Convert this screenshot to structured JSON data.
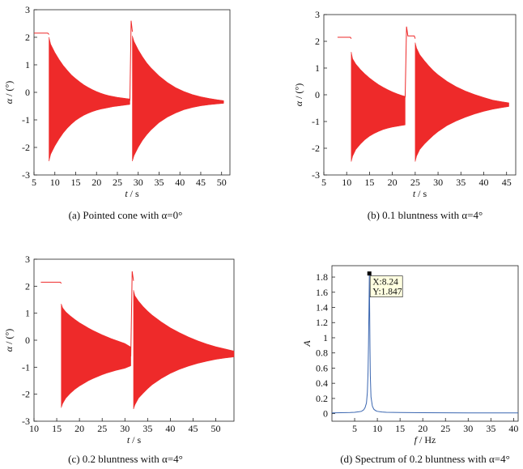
{
  "chart_data": [
    {
      "panel": "a",
      "type": "line",
      "caption": "(a) Pointed cone with α=0°",
      "xlabel_var": "t",
      "xlabel_unit": " / s",
      "ylabel_var": "α",
      "ylabel_unit": " / (°)",
      "xlim": [
        5,
        52
      ],
      "ylim": [
        -3,
        3
      ],
      "xticks": [
        5,
        10,
        15,
        20,
        25,
        30,
        35,
        40,
        45,
        50
      ],
      "yticks": [
        -3,
        -2,
        -1,
        0,
        1,
        2,
        3
      ],
      "color": "#ee2a2a",
      "series": [
        {
          "x": [
            5.0,
            8.3,
            8.6
          ],
          "y": [
            2.15,
            2.15,
            2.1
          ]
        },
        {
          "x": [
            8.6,
            9.0,
            10,
            11,
            12,
            13,
            14,
            15,
            16,
            17,
            18,
            19,
            20,
            21,
            22,
            23,
            24,
            25,
            26,
            27,
            28
          ],
          "upper": [
            2.0,
            1.75,
            1.45,
            1.2,
            0.98,
            0.8,
            0.63,
            0.5,
            0.38,
            0.27,
            0.18,
            0.1,
            0.03,
            -0.03,
            -0.08,
            -0.12,
            -0.15,
            -0.18,
            -0.2,
            -0.22,
            -0.24
          ],
          "lower": [
            -2.5,
            -2.25,
            -1.95,
            -1.7,
            -1.48,
            -1.3,
            -1.15,
            -1.02,
            -0.92,
            -0.83,
            -0.76,
            -0.7,
            -0.65,
            -0.61,
            -0.58,
            -0.55,
            -0.52,
            -0.5,
            -0.48,
            -0.46,
            -0.44
          ]
        },
        {
          "x": [
            28.0,
            28.3,
            28.6
          ],
          "y": [
            -0.3,
            2.6,
            2.2
          ]
        },
        {
          "x": [
            28.6,
            29.0,
            30,
            31,
            32,
            33,
            35,
            37,
            39,
            41,
            43,
            45,
            47,
            49,
            50.5
          ],
          "upper": [
            2.05,
            1.85,
            1.55,
            1.3,
            1.08,
            0.9,
            0.6,
            0.36,
            0.17,
            0.03,
            -0.08,
            -0.16,
            -0.22,
            -0.27,
            -0.3
          ],
          "lower": [
            -2.5,
            -2.3,
            -2.0,
            -1.75,
            -1.55,
            -1.38,
            -1.1,
            -0.9,
            -0.75,
            -0.63,
            -0.55,
            -0.49,
            -0.45,
            -0.42,
            -0.4
          ]
        }
      ]
    },
    {
      "panel": "b",
      "type": "line",
      "caption": "(b) 0.1 bluntness with α=4°",
      "xlabel_var": "t",
      "xlabel_unit": " / s",
      "ylabel_var": "α",
      "ylabel_unit": " / (°)",
      "xlim": [
        5,
        47
      ],
      "ylim": [
        -3,
        3
      ],
      "xticks": [
        5,
        10,
        15,
        20,
        25,
        30,
        35,
        40,
        45
      ],
      "yticks": [
        -3,
        -2,
        -1,
        0,
        1,
        2,
        3
      ],
      "color": "#ee2a2a",
      "series": [
        {
          "x": [
            8.0,
            10.8,
            11.0
          ],
          "y": [
            2.15,
            2.15,
            2.1
          ]
        },
        {
          "x": [
            11.0,
            11.3,
            12,
            13,
            14,
            15,
            16,
            17,
            18,
            19,
            20,
            21,
            22,
            22.8
          ],
          "upper": [
            1.6,
            1.35,
            1.15,
            0.95,
            0.78,
            0.63,
            0.5,
            0.38,
            0.28,
            0.19,
            0.11,
            0.04,
            -0.02,
            -0.06
          ],
          "lower": [
            -2.5,
            -2.3,
            -2.05,
            -1.85,
            -1.68,
            -1.55,
            -1.45,
            -1.37,
            -1.3,
            -1.25,
            -1.21,
            -1.18,
            -1.15,
            -1.13
          ]
        },
        {
          "x": [
            22.8,
            23.1,
            23.4,
            23.7,
            24.8,
            25.0
          ],
          "y": [
            -0.1,
            2.55,
            2.2,
            2.2,
            2.2,
            2.1
          ]
        },
        {
          "x": [
            25.0,
            25.3,
            26,
            27,
            28,
            29,
            30,
            32,
            34,
            36,
            38,
            40,
            42,
            44,
            45.5
          ],
          "upper": [
            1.95,
            1.75,
            1.5,
            1.28,
            1.08,
            0.9,
            0.75,
            0.5,
            0.3,
            0.14,
            0.01,
            -0.1,
            -0.2,
            -0.26,
            -0.3
          ],
          "lower": [
            -2.5,
            -2.3,
            -2.05,
            -1.85,
            -1.68,
            -1.52,
            -1.38,
            -1.15,
            -0.98,
            -0.84,
            -0.72,
            -0.62,
            -0.54,
            -0.48,
            -0.44
          ]
        }
      ]
    },
    {
      "panel": "c",
      "type": "line",
      "caption": "(c) 0.2 bluntness with α=4°",
      "xlabel_var": "t",
      "xlabel_unit": " / s",
      "ylabel_var": "α",
      "ylabel_unit": " / (°)",
      "xlim": [
        10,
        54
      ],
      "ylim": [
        -3,
        3
      ],
      "xticks": [
        10,
        15,
        20,
        25,
        30,
        35,
        40,
        45,
        50
      ],
      "yticks": [
        -3,
        -2,
        -1,
        0,
        1,
        2,
        3
      ],
      "color": "#ee2a2a",
      "series": [
        {
          "x": [
            11.5,
            15.8,
            16.0
          ],
          "y": [
            2.15,
            2.15,
            2.1
          ]
        },
        {
          "x": [
            16.0,
            16.3,
            17,
            18,
            19,
            20,
            21,
            22,
            23,
            24,
            25,
            26,
            27,
            28,
            29,
            30,
            31.3
          ],
          "upper": [
            1.35,
            1.2,
            1.05,
            0.9,
            0.77,
            0.65,
            0.55,
            0.45,
            0.36,
            0.28,
            0.2,
            0.13,
            0.06,
            0.0,
            -0.06,
            -0.12,
            -0.25
          ],
          "lower": [
            -2.5,
            -2.35,
            -2.15,
            -1.97,
            -1.82,
            -1.7,
            -1.6,
            -1.5,
            -1.42,
            -1.35,
            -1.28,
            -1.22,
            -1.17,
            -1.12,
            -1.08,
            -1.04,
            -0.95
          ]
        },
        {
          "x": [
            31.3,
            31.6,
            31.9
          ],
          "y": [
            -0.6,
            2.55,
            2.2
          ]
        },
        {
          "x": [
            31.9,
            32.2,
            33,
            34,
            35,
            36,
            38,
            40,
            42,
            44,
            46,
            48,
            50,
            52,
            54
          ],
          "upper": [
            1.85,
            1.65,
            1.45,
            1.25,
            1.08,
            0.93,
            0.68,
            0.46,
            0.28,
            0.12,
            -0.02,
            -0.14,
            -0.24,
            -0.32,
            -0.4
          ],
          "lower": [
            -2.55,
            -2.4,
            -2.15,
            -1.97,
            -1.8,
            -1.65,
            -1.42,
            -1.23,
            -1.08,
            -0.96,
            -0.86,
            -0.78,
            -0.71,
            -0.66,
            -0.62
          ]
        }
      ]
    },
    {
      "panel": "d",
      "type": "line",
      "caption": "(d) Spectrum of 0.2 bluntness with α=4°",
      "xlabel_var": "f",
      "xlabel_unit": " / Hz",
      "ylabel_var": "A",
      "ylabel_unit": "",
      "xlim": [
        0,
        41
      ],
      "ylim": [
        -0.1,
        1.95
      ],
      "xticks": [
        5,
        10,
        15,
        20,
        25,
        30,
        35,
        40
      ],
      "yticks": [
        0,
        0.2,
        0.4,
        0.6,
        0.8,
        1.0,
        1.2,
        1.4,
        1.6,
        1.8
      ],
      "color": "#3a66b0",
      "series": [
        {
          "x": [
            0,
            2,
            4,
            5,
            6,
            6.5,
            7,
            7.3,
            7.6,
            7.8,
            7.95,
            8.05,
            8.1,
            8.15,
            8.2,
            8.24,
            8.28,
            8.33,
            8.38,
            8.45,
            8.6,
            8.9,
            9.2,
            9.6,
            10,
            11,
            12,
            15,
            20,
            25,
            30,
            35,
            40,
            41
          ],
          "y": [
            0.01,
            0.012,
            0.015,
            0.018,
            0.025,
            0.03,
            0.05,
            0.08,
            0.14,
            0.28,
            0.55,
            0.9,
            1.15,
            1.35,
            1.6,
            1.847,
            1.55,
            1.2,
            0.85,
            0.5,
            0.22,
            0.1,
            0.06,
            0.04,
            0.03,
            0.022,
            0.018,
            0.015,
            0.012,
            0.011,
            0.01,
            0.01,
            0.01,
            0.01
          ]
        }
      ],
      "datatip": {
        "x": 8.24,
        "y": 1.847,
        "x_text": "X:8.24",
        "y_text": "Y:1.847"
      }
    }
  ]
}
